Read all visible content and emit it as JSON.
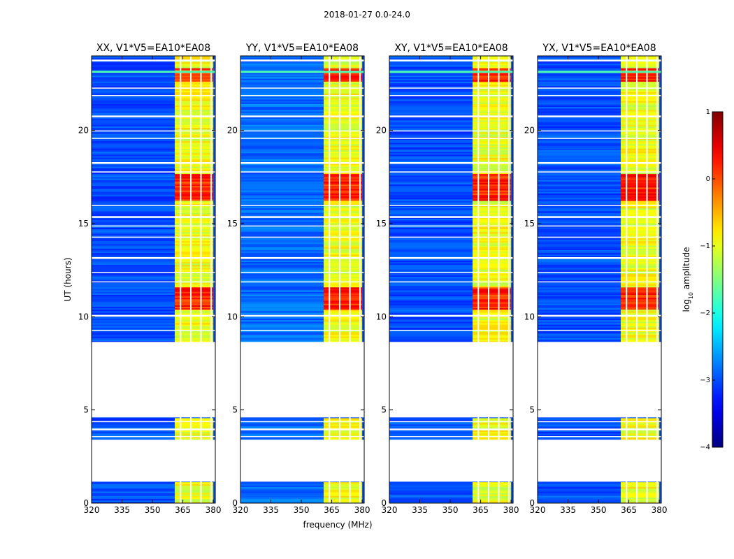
{
  "figure": {
    "suptitle": "2018-01-27 0.0-24.0"
  },
  "chart_data": {
    "type": "heatmap",
    "title": "2018-01-27 0.0-24.0",
    "xlabel": "frequency (MHz)",
    "ylabel": "UT (hours)",
    "xlim": [
      320,
      381
    ],
    "ylim": [
      0,
      24
    ],
    "xticks": [
      320,
      335,
      350,
      365,
      380
    ],
    "yticks": [
      0,
      5,
      10,
      15,
      20
    ],
    "panels": [
      {
        "name": "XX",
        "title": "XX, V1*V5=EA10*EA08"
      },
      {
        "name": "YY",
        "title": "YY, V1*V5=EA10*EA08"
      },
      {
        "name": "XY",
        "title": "XY, V1*V5=EA10*EA08"
      },
      {
        "name": "YX",
        "title": "YX, V1*V5=EA10*EA08"
      }
    ],
    "colorbar": {
      "label": "log10 amplitude",
      "label_base": "log",
      "label_sub": "10",
      "label_rest": " amplitude",
      "range": [
        -4,
        1
      ],
      "ticks": [
        "1",
        "0",
        "−1",
        "−2",
        "−3",
        "−4"
      ],
      "colormap": "jet"
    },
    "data_gaps_hours": [
      [
        1.15,
        3.4
      ],
      [
        4.6,
        8.65
      ]
    ],
    "rfi_band_mhz": [
      361,
      380
    ],
    "flagged_channels_mhz": [
      [
        363.5,
        364.2
      ],
      [
        368.6,
        369.3
      ],
      [
        373.6,
        374.3
      ],
      [
        378.6,
        379.3
      ]
    ],
    "high_amplitude_hours": [
      [
        10.4,
        11.6
      ],
      [
        16.2,
        17.6
      ],
      [
        22.6,
        23.3
      ]
    ],
    "colors": {
      "axis": "#000000",
      "background": "#ffffff"
    }
  }
}
